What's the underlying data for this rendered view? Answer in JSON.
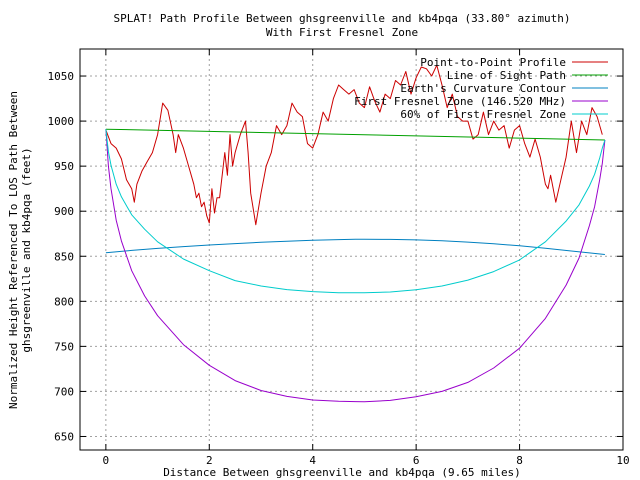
{
  "chart_data": {
    "type": "line",
    "title": "SPLAT! Path Profile Between ghsgreenville and kb4pqa (33.80° azimuth)",
    "subtitle": "With First Fresnel Zone",
    "xlabel": "Distance Between ghsgreenville and kb4pqa (9.65 miles)",
    "ylabel_lines": [
      "Normalized Height Referenced To LOS Path Between",
      "ghsgreenville and kb4pqa (feet)"
    ],
    "xlim": [
      -0.5,
      10
    ],
    "ylim": [
      635,
      1080
    ],
    "xticks": [
      0,
      2,
      4,
      6,
      8,
      10
    ],
    "yticks": [
      650,
      700,
      750,
      800,
      850,
      900,
      950,
      1000,
      1050
    ],
    "grid": true,
    "legend_position": "top-right",
    "series": [
      {
        "name": "Point-to-Point Profile",
        "color": "#cc0000",
        "x": [
          0,
          0.1,
          0.2,
          0.3,
          0.4,
          0.5,
          0.55,
          0.6,
          0.7,
          0.8,
          0.9,
          1.0,
          1.1,
          1.2,
          1.3,
          1.35,
          1.4,
          1.5,
          1.6,
          1.7,
          1.75,
          1.8,
          1.85,
          1.9,
          1.95,
          2.0,
          2.05,
          2.1,
          2.15,
          2.2,
          2.3,
          2.35,
          2.4,
          2.45,
          2.5,
          2.6,
          2.7,
          2.75,
          2.8,
          2.9,
          3.0,
          3.1,
          3.2,
          3.3,
          3.4,
          3.5,
          3.6,
          3.7,
          3.8,
          3.9,
          4.0,
          4.1,
          4.2,
          4.3,
          4.4,
          4.5,
          4.6,
          4.7,
          4.8,
          4.9,
          5.0,
          5.1,
          5.2,
          5.3,
          5.4,
          5.5,
          5.6,
          5.7,
          5.8,
          5.9,
          6.0,
          6.1,
          6.2,
          6.3,
          6.4,
          6.5,
          6.6,
          6.7,
          6.8,
          6.9,
          7.0,
          7.1,
          7.2,
          7.3,
          7.4,
          7.5,
          7.6,
          7.7,
          7.8,
          7.9,
          8.0,
          8.1,
          8.2,
          8.3,
          8.4,
          8.5,
          8.55,
          8.6,
          8.7,
          8.8,
          8.9,
          9.0,
          9.1,
          9.2,
          9.3,
          9.4,
          9.5,
          9.6
        ],
        "y": [
          990,
          975,
          970,
          958,
          935,
          925,
          910,
          930,
          945,
          955,
          965,
          985,
          1020,
          1012,
          985,
          965,
          985,
          970,
          950,
          930,
          915,
          920,
          905,
          910,
          895,
          887,
          925,
          898,
          915,
          915,
          965,
          940,
          985,
          950,
          965,
          985,
          1000,
          965,
          920,
          885,
          920,
          950,
          965,
          995,
          985,
          995,
          1020,
          1010,
          1005,
          975,
          970,
          985,
          1010,
          1000,
          1025,
          1040,
          1035,
          1030,
          1035,
          1020,
          1015,
          1038,
          1022,
          1010,
          1030,
          1025,
          1045,
          1040,
          1055,
          1030,
          1048,
          1060,
          1058,
          1050,
          1062,
          1040,
          1015,
          1030,
          1005,
          1000,
          1000,
          980,
          985,
          1010,
          985,
          1000,
          990,
          995,
          970,
          990,
          995,
          975,
          960,
          980,
          960,
          930,
          925,
          940,
          910,
          935,
          960,
          1000,
          965,
          1000,
          985,
          1015,
          1005,
          985
        ]
      },
      {
        "name": "Line of Sight Path",
        "color": "#00a000",
        "x": [
          0,
          9.65
        ],
        "y": [
          991,
          979
        ]
      },
      {
        "name": "Earth's Curvature Contour",
        "color": "#0080c0",
        "x": [
          0,
          0.5,
          1,
          1.5,
          2,
          2.5,
          3,
          3.5,
          4,
          4.5,
          4.825,
          5,
          5.5,
          6,
          6.5,
          7,
          7.5,
          8,
          8.5,
          9,
          9.65
        ],
        "y": [
          854,
          856.5,
          858.7,
          860.7,
          862.5,
          864.1,
          865.5,
          866.7,
          867.7,
          868.5,
          868.8,
          868.9,
          868.7,
          868.1,
          867.1,
          865.7,
          863.9,
          861.6,
          858.9,
          855.8,
          852
        ]
      },
      {
        "name": "First Fresnel Zone (146.520 MHz)",
        "color": "#9900cc",
        "x": [
          0,
          0.05,
          0.1,
          0.2,
          0.3,
          0.5,
          0.75,
          1,
          1.5,
          2,
          2.5,
          3,
          3.5,
          4,
          4.5,
          4.825,
          5,
          5.5,
          6,
          6.5,
          7,
          7.5,
          8,
          8.5,
          8.9,
          9.15,
          9.35,
          9.45,
          9.55,
          9.6,
          9.65
        ],
        "y": [
          991,
          950,
          925,
          890,
          867,
          834,
          806,
          784,
          752,
          729,
          712,
          701,
          694.5,
          690.5,
          689,
          688.7,
          688.6,
          690,
          694,
          700,
          710,
          726,
          748,
          781,
          818,
          848,
          884,
          905,
          935,
          953,
          979
        ]
      },
      {
        "name": "60% of First Fresnel Zone",
        "color": "#00cccc",
        "x": [
          0,
          0.05,
          0.1,
          0.2,
          0.3,
          0.5,
          0.75,
          1,
          1.5,
          2,
          2.5,
          3,
          3.5,
          4,
          4.5,
          4.825,
          5,
          5.5,
          6,
          6.5,
          7,
          7.5,
          8,
          8.5,
          8.9,
          9.15,
          9.35,
          9.45,
          9.55,
          9.6,
          9.65
        ],
        "y": [
          991,
          966,
          951,
          930,
          916,
          896,
          880,
          866,
          847,
          834,
          823,
          817,
          813,
          810.8,
          809.6,
          809.4,
          809.4,
          810.3,
          812.9,
          817,
          823.5,
          833,
          846,
          866,
          889,
          907,
          928,
          941,
          959,
          970,
          979
        ]
      }
    ]
  }
}
